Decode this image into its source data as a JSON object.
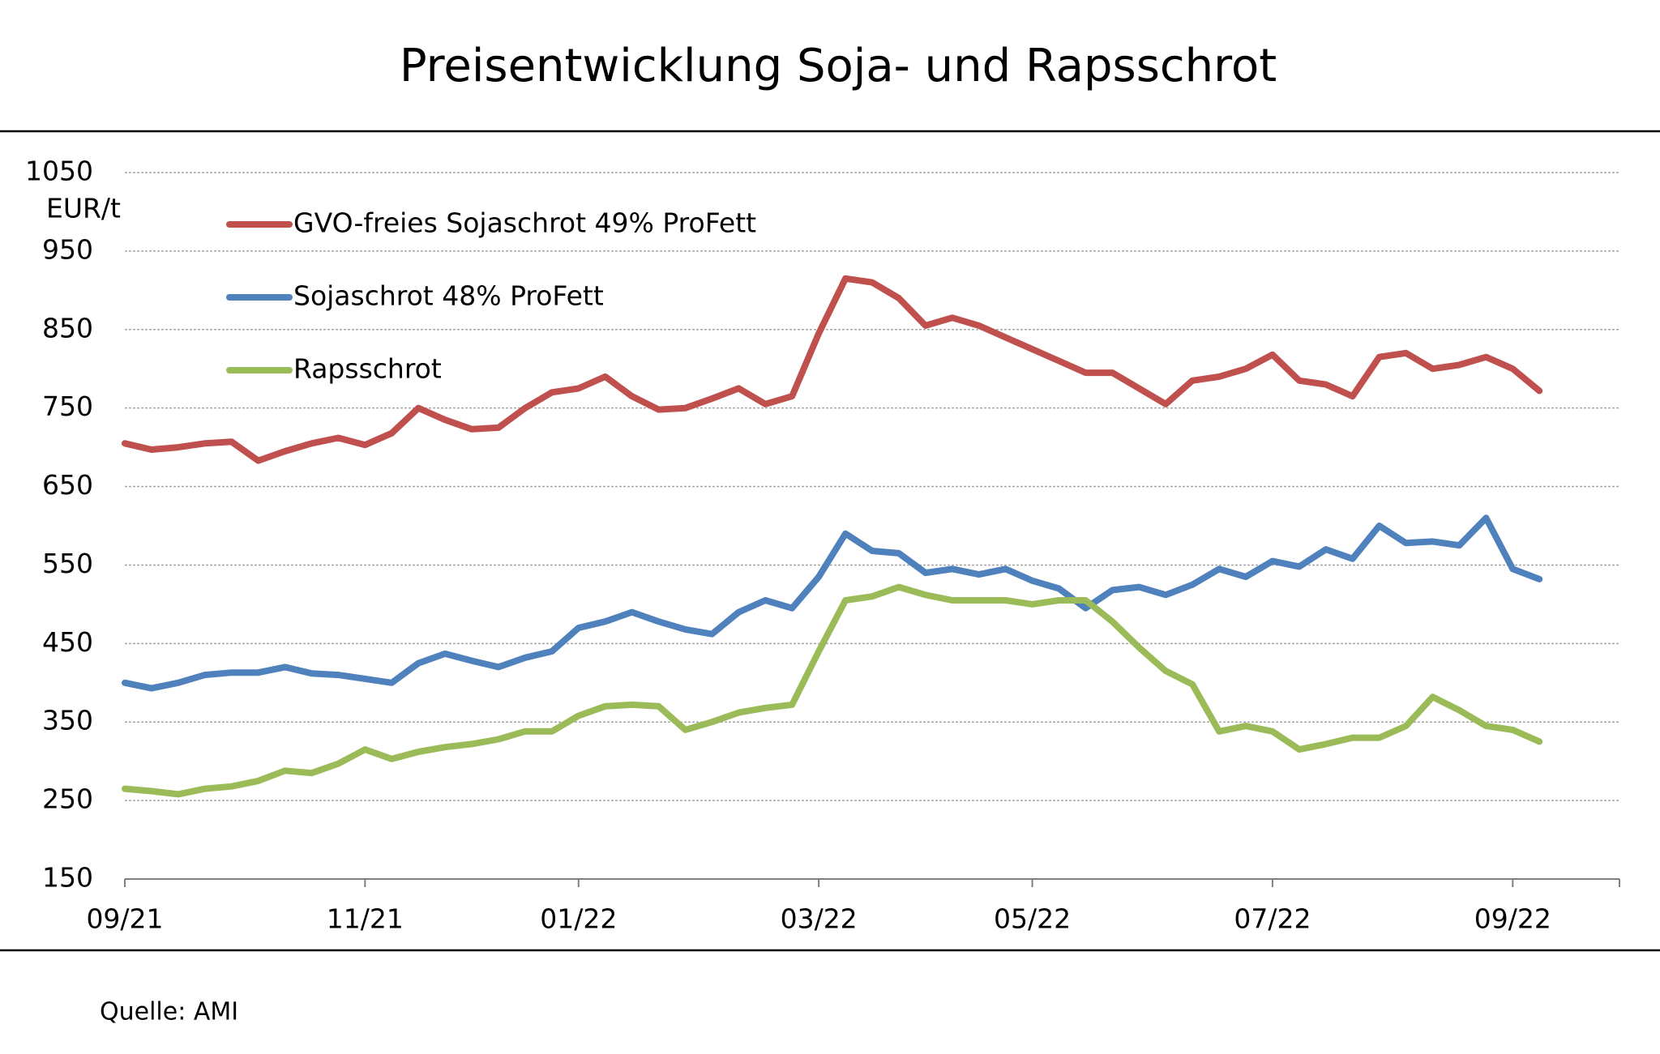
{
  "chart_data": {
    "type": "line",
    "title": "Preisentwicklung Soja- und Rapsschrot",
    "y_label": "EUR/t",
    "source": "Quelle: AMI",
    "categories": [
      "09/21",
      null,
      null,
      null,
      null,
      null,
      null,
      null,
      null,
      "11/21",
      null,
      null,
      null,
      null,
      null,
      null,
      null,
      "01/22",
      null,
      null,
      null,
      null,
      null,
      null,
      null,
      null,
      "03/22",
      null,
      null,
      null,
      null,
      null,
      null,
      null,
      "05/22",
      null,
      null,
      null,
      null,
      null,
      null,
      null,
      null,
      "07/22",
      null,
      null,
      null,
      null,
      null,
      null,
      null,
      null,
      "09/22",
      null,
      null,
      null,
      null
    ],
    "series": [
      {
        "name": "GVO-freies Sojaschrot 49% ProFett",
        "color": "#c0504d",
        "values": [
          705,
          697,
          700,
          705,
          707,
          683,
          695,
          705,
          712,
          703,
          718,
          750,
          735,
          723,
          725,
          750,
          770,
          775,
          790,
          765,
          748,
          750,
          762,
          775,
          755,
          765,
          845,
          915,
          910,
          890,
          855,
          865,
          855,
          840,
          825,
          810,
          795,
          795,
          775,
          755,
          785,
          790,
          800,
          818,
          785,
          780,
          765,
          815,
          820,
          800,
          805,
          815,
          800,
          772,
          null,
          null,
          null
        ]
      },
      {
        "name": "Sojaschrot 48% ProFett",
        "color": "#4f81bd",
        "values": [
          400,
          393,
          400,
          410,
          413,
          413,
          420,
          412,
          410,
          405,
          400,
          425,
          437,
          428,
          420,
          432,
          440,
          470,
          478,
          490,
          478,
          468,
          462,
          490,
          505,
          495,
          535,
          590,
          568,
          565,
          540,
          545,
          538,
          545,
          530,
          520,
          495,
          518,
          522,
          512,
          525,
          545,
          535,
          555,
          548,
          570,
          558,
          600,
          578,
          580,
          575,
          610,
          545,
          532,
          null,
          null,
          null
        ]
      },
      {
        "name": "Rapsschrot",
        "color": "#9bbb59",
        "values": [
          265,
          262,
          258,
          265,
          268,
          275,
          288,
          285,
          297,
          315,
          303,
          312,
          318,
          322,
          328,
          338,
          338,
          358,
          370,
          372,
          370,
          340,
          350,
          362,
          368,
          372,
          440,
          505,
          510,
          522,
          512,
          505,
          505,
          505,
          500,
          505,
          505,
          478,
          445,
          415,
          398,
          338,
          345,
          338,
          315,
          322,
          330,
          330,
          345,
          382,
          365,
          345,
          340,
          325,
          null,
          null,
          null
        ]
      }
    ],
    "ylim": [
      150,
      1050
    ],
    "yticks": [
      150,
      250,
      350,
      450,
      550,
      650,
      750,
      850,
      950,
      1050
    ],
    "grid": true,
    "legend": "top-left"
  }
}
